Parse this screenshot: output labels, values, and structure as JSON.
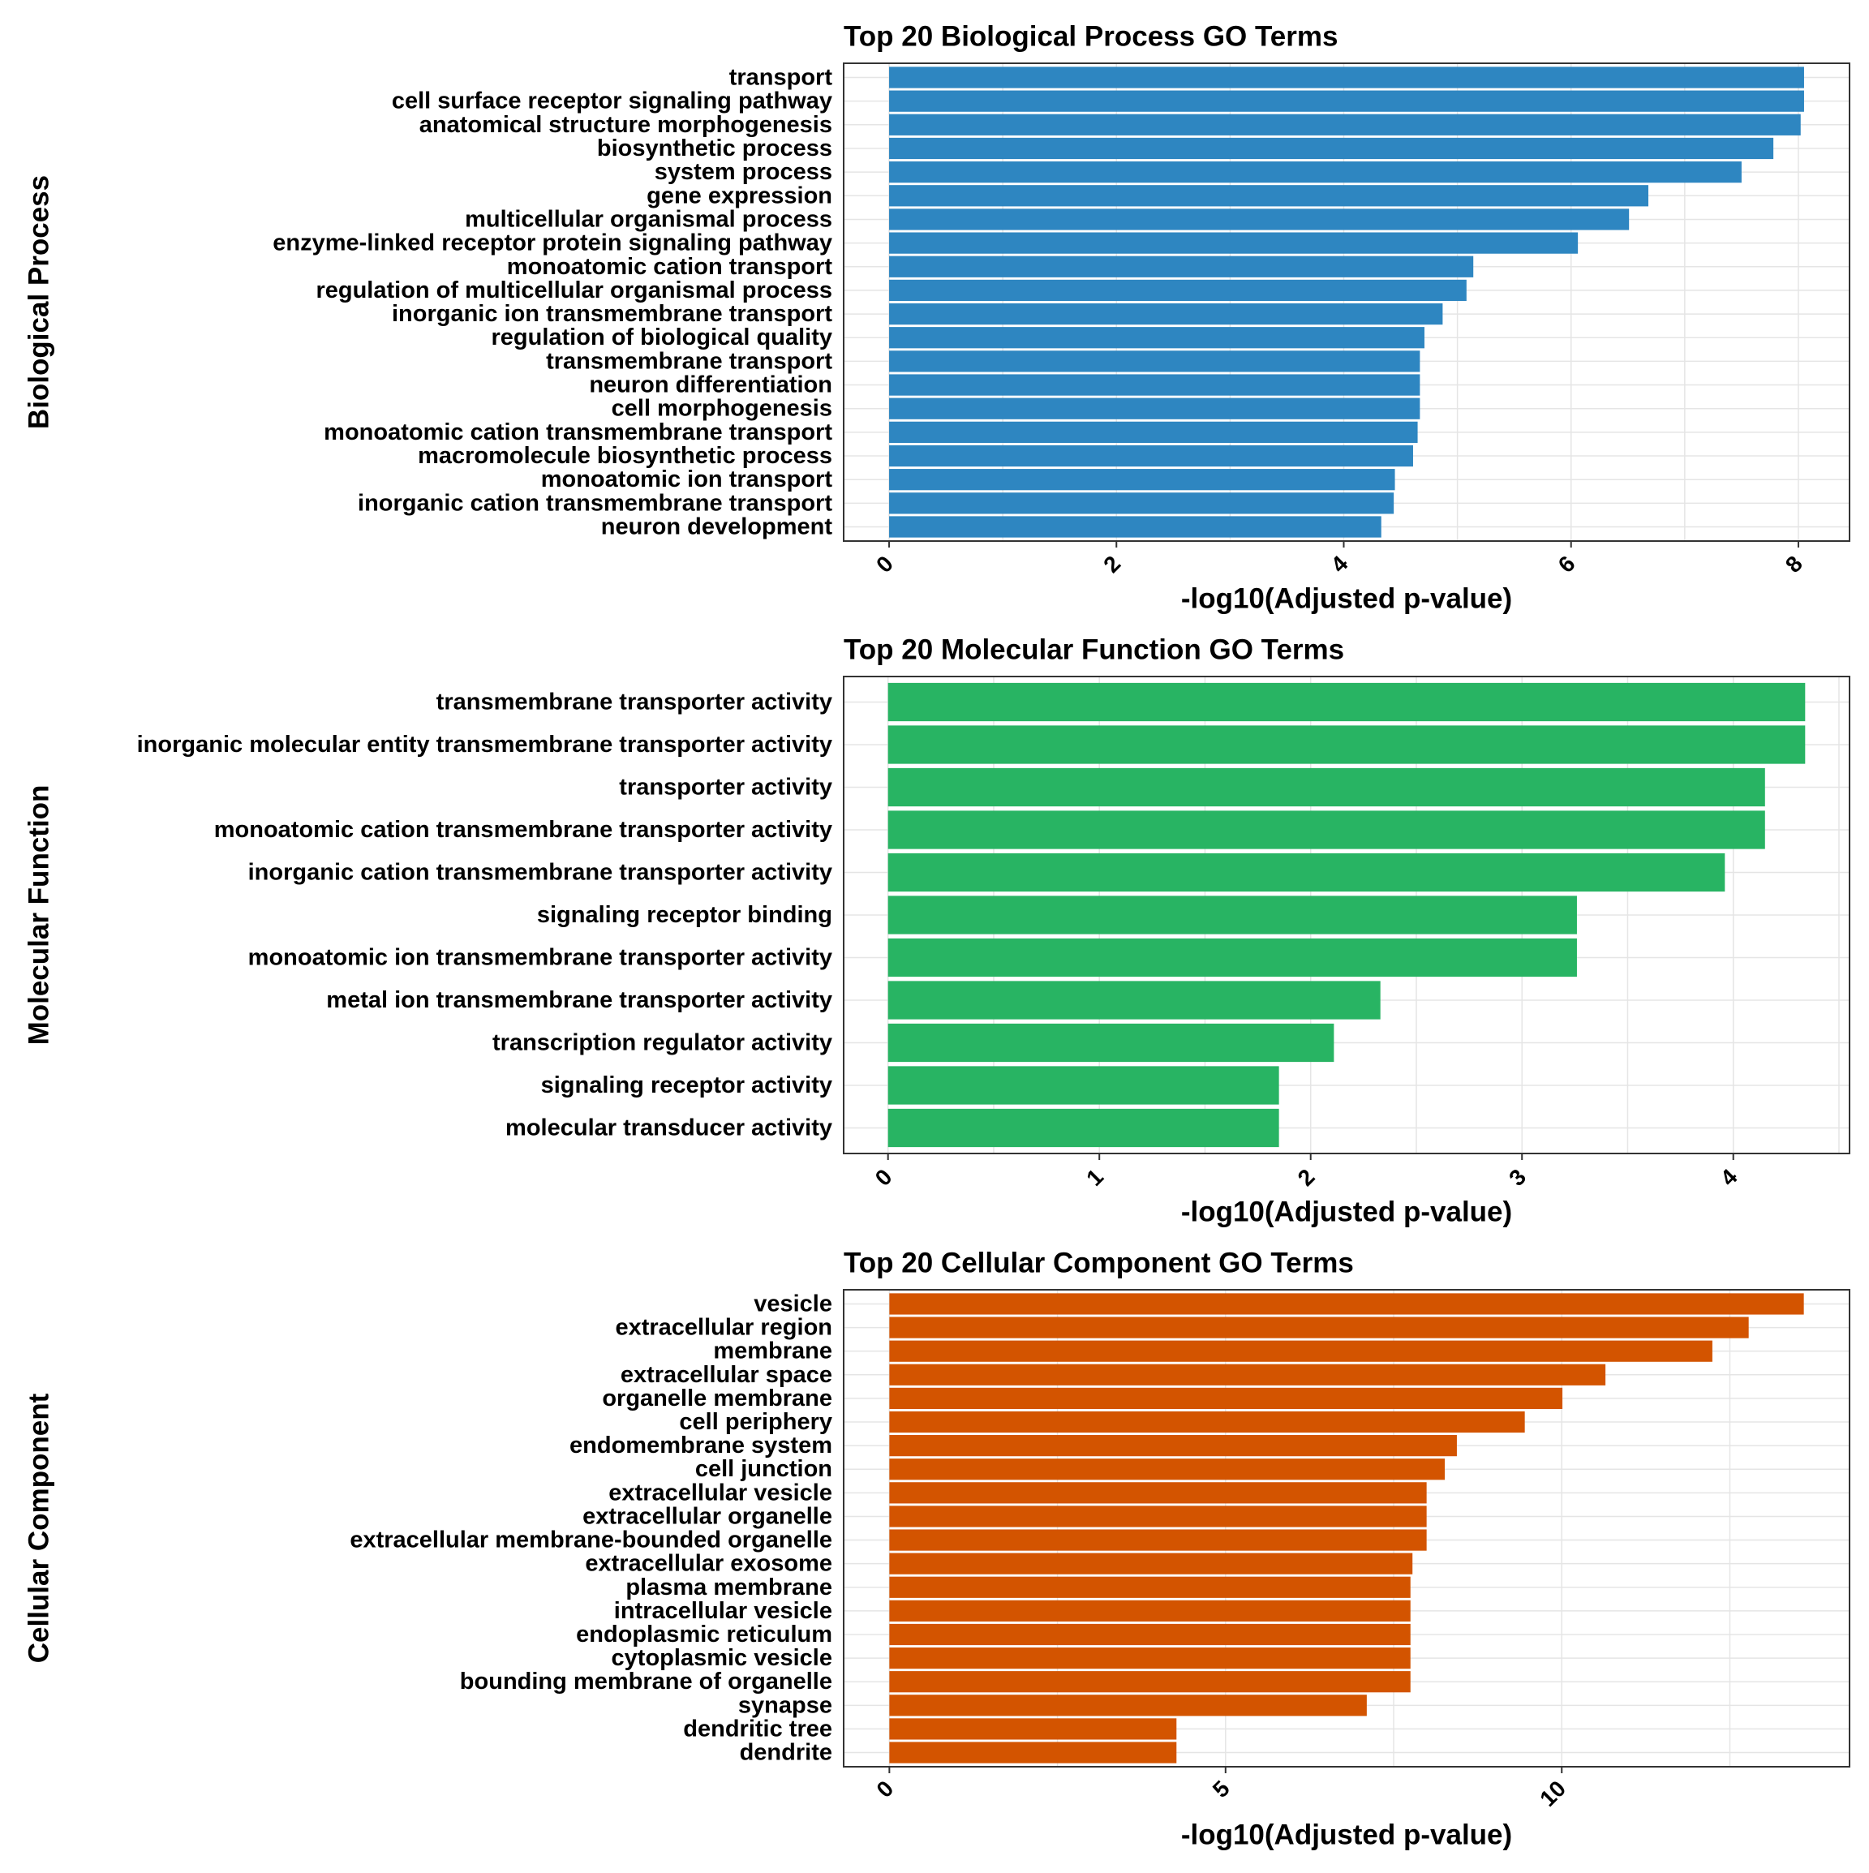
{
  "colors": {
    "bp": "#2e86c1",
    "mf": "#28b463",
    "cc": "#d35400",
    "grid": "#e5e5e5",
    "panel_border": "#333333"
  },
  "chart_data": [
    {
      "type": "bar",
      "orientation": "horizontal",
      "title": "Top 20 Biological Process GO Terms",
      "xlabel": "-log10(Adjusted p-value)",
      "ylabel": "Biological Process",
      "xlim": [
        -0.4,
        8.45
      ],
      "xticks": [
        0,
        2,
        4,
        6,
        8
      ],
      "grid": true,
      "color_key": "bp",
      "categories": [
        "transport",
        "cell surface receptor signaling pathway",
        "anatomical structure morphogenesis",
        "biosynthetic process",
        "system process",
        "gene expression",
        "multicellular organismal process",
        "enzyme-linked receptor protein signaling pathway",
        "monoatomic cation transport",
        "regulation of multicellular organismal process",
        "inorganic ion transmembrane transport",
        "regulation of biological quality",
        "transmembrane transport",
        "neuron differentiation",
        "cell morphogenesis",
        "monoatomic cation transmembrane transport",
        "macromolecule biosynthetic process",
        "monoatomic ion transport",
        "inorganic cation transmembrane transport",
        "neuron development"
      ],
      "values": [
        8.05,
        8.05,
        8.02,
        7.78,
        7.5,
        6.68,
        6.51,
        6.06,
        5.14,
        5.08,
        4.87,
        4.71,
        4.67,
        4.67,
        4.67,
        4.65,
        4.61,
        4.45,
        4.44,
        4.33
      ]
    },
    {
      "type": "bar",
      "orientation": "horizontal",
      "title": "Top 20 Molecular Function GO Terms",
      "xlabel": "-log10(Adjusted p-value)",
      "ylabel": "Molecular Function",
      "xlim": [
        -0.21,
        4.55
      ],
      "xticks": [
        0,
        1,
        2,
        3,
        4
      ],
      "grid": true,
      "color_key": "mf",
      "categories": [
        "transmembrane transporter activity",
        "inorganic molecular entity transmembrane transporter activity",
        "transporter activity",
        "monoatomic cation transmembrane transporter activity",
        "inorganic cation transmembrane transporter activity",
        "signaling receptor binding",
        "monoatomic ion transmembrane transporter activity",
        "metal ion transmembrane transporter activity",
        "transcription regulator activity",
        "signaling receptor activity",
        "molecular transducer activity"
      ],
      "values": [
        4.34,
        4.34,
        4.15,
        4.15,
        3.96,
        3.26,
        3.26,
        2.33,
        2.11,
        1.85,
        1.85
      ]
    },
    {
      "type": "bar",
      "orientation": "horizontal",
      "title": "Top 20 Cellular Component GO Terms",
      "xlabel": "-log10(Adjusted p-value)",
      "ylabel": "Cellular Component",
      "xlim": [
        -0.68,
        14.28
      ],
      "xticks": [
        0,
        5,
        10
      ],
      "grid": true,
      "color_key": "cc",
      "categories": [
        "vesicle",
        "extracellular region",
        "membrane",
        "extracellular space",
        "organelle membrane",
        "cell periphery",
        "endomembrane system",
        "cell junction",
        "extracellular vesicle",
        "extracellular organelle",
        "extracellular membrane-bounded organelle",
        "extracellular exosome",
        "plasma membrane",
        "intracellular vesicle",
        "endoplasmic reticulum",
        "cytoplasmic vesicle",
        "bounding membrane of organelle",
        "synapse",
        "dendritic tree",
        "dendrite"
      ],
      "values": [
        13.6,
        12.78,
        12.24,
        10.65,
        10.01,
        9.45,
        8.44,
        8.26,
        7.99,
        7.99,
        7.99,
        7.78,
        7.75,
        7.75,
        7.75,
        7.75,
        7.75,
        7.1,
        4.27,
        4.27
      ]
    }
  ]
}
